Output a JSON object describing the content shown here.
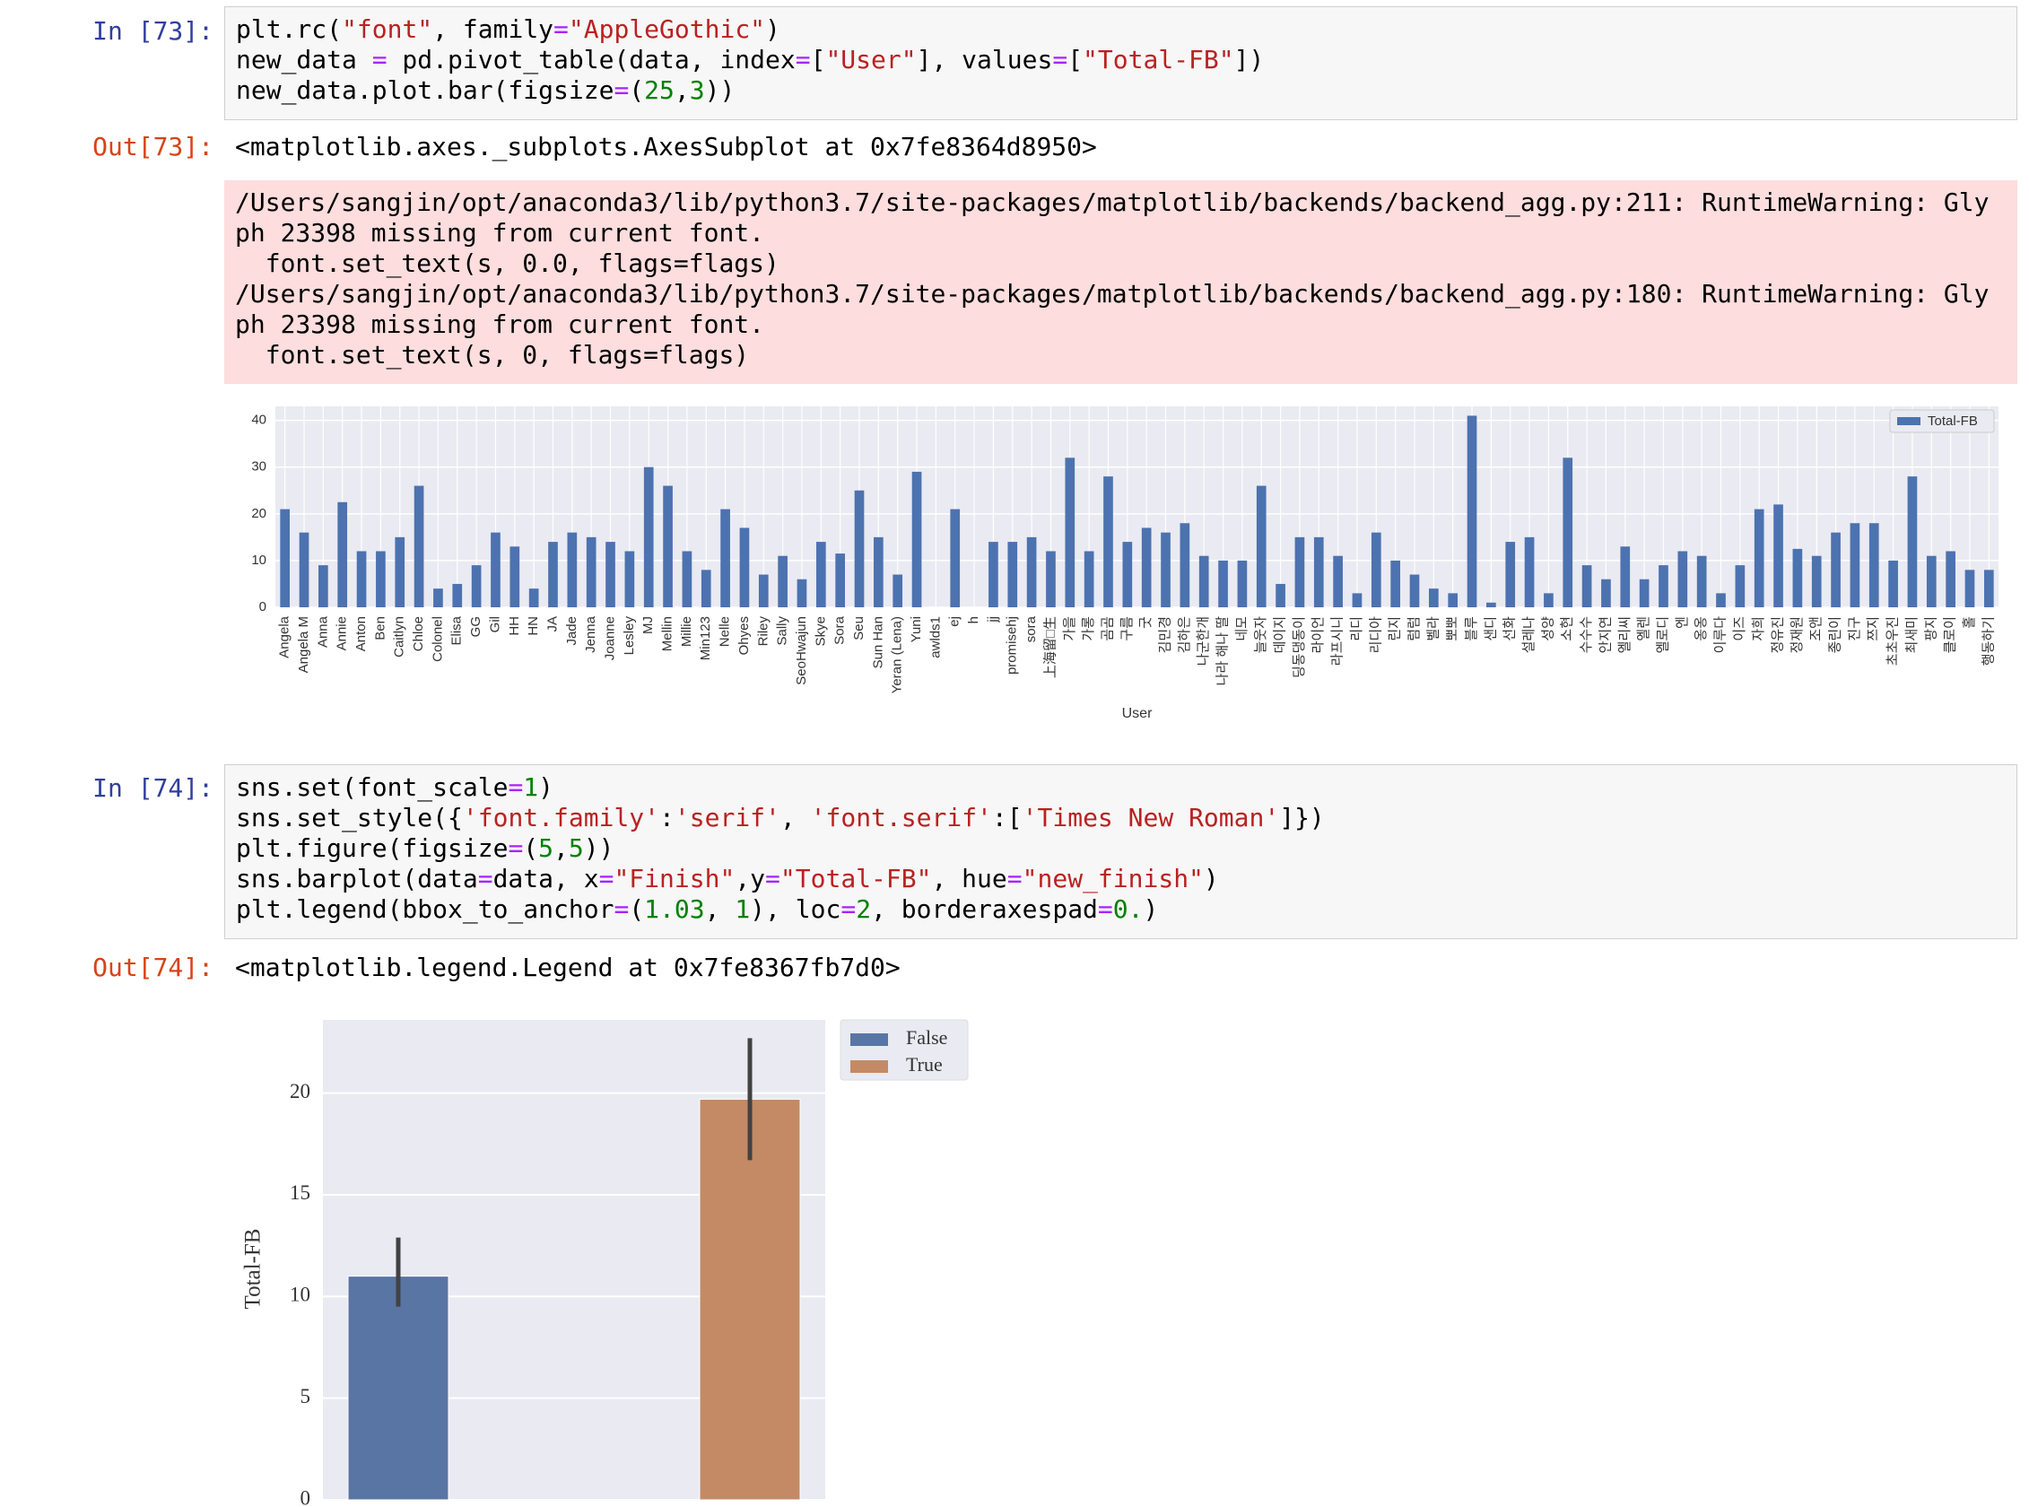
{
  "cells": [
    {
      "prompt": "In [73]:",
      "code": [
        "plt.rc(\"font\", family=\"AppleGothic\")",
        "new_data = pd.pivot_table(data, index=[\"User\"], values=[\"Total-FB\"])",
        "new_data.plot.bar(figsize=(25,3))"
      ],
      "out_prompt": "Out[73]:",
      "output": "<matplotlib.axes._subplots.AxesSubplot at 0x7fe8364d8950>",
      "stderr": [
        "/Users/sangjin/opt/anaconda3/lib/python3.7/site-packages/matplotlib/backends/backend_agg.py:211: RuntimeWarning: Gly",
        "ph 23398 missing from current font.",
        "  font.set_text(s, 0.0, flags=flags)",
        "/Users/sangjin/opt/anaconda3/lib/python3.7/site-packages/matplotlib/backends/backend_agg.py:180: RuntimeWarning: Gly",
        "ph 23398 missing from current font.",
        "  font.set_text(s, 0, flags=flags)"
      ],
      "chart": {
        "type": "bar",
        "xlabel": "User",
        "categories": [
          "Angela",
          "Angela M",
          "Anna",
          "Annie",
          "Anton",
          "Ben",
          "Caitlyn",
          "Chloe",
          "Colonel",
          "Elisa",
          "GG",
          "Gil",
          "HH",
          "HN",
          "JA",
          "Jade",
          "Jenna",
          "Joanne",
          "Lesley",
          "MJ",
          "Mellin",
          "Millie",
          "Min123",
          "Nelle",
          "Ohyes",
          "Riley",
          "Sally",
          "SeoHwajun",
          "Skye",
          "Sora",
          "Seu",
          "Sun Han",
          "Yeran (Lena)",
          "Yuni",
          "awlds1",
          "ej",
          "h",
          "jj",
          "promisehj",
          "sora",
          "上海留□生",
          "가을",
          "가롱",
          "곰곰",
          "구름",
          "굿",
          "김민경",
          "김하은",
          "나군한개",
          "나라 해나 딸",
          "네모",
          "늘웃자",
          "데이지",
          "딩동댕동이",
          "라이언",
          "라프시니",
          "리디",
          "리디아",
          "린지",
          "럼럼",
          "벨라",
          "뽀뽀",
          "블루",
          "샌디",
          "선화",
          "설레나",
          "성양",
          "소현",
          "수수수",
          "안지연",
          "엘리씨",
          "엘렌",
          "엘로디",
          "엔",
          "옹옹",
          "이루다",
          "이즈",
          "자희",
          "정유진",
          "정재원",
          "조앤",
          "종린이",
          "진구",
          "쯔지",
          "초초우진",
          "최새미",
          "팡지",
          "클로이",
          "홀",
          "행동하기"
        ],
        "series": [
          {
            "name": "Total-FB",
            "color": "#4c72b0",
            "values": [
              21,
              16,
              9,
              22.5,
              12,
              12,
              15,
              26,
              4,
              5,
              9,
              16,
              13,
              4,
              14,
              16,
              15,
              14,
              12,
              30,
              26,
              12,
              8,
              21,
              17,
              7,
              11,
              6,
              14,
              11.5,
              25,
              15,
              7,
              29,
              null,
              21,
              null,
              14,
              14,
              15,
              12,
              32,
              12,
              28,
              14,
              17,
              16,
              18,
              11,
              10,
              10,
              26,
              5,
              15,
              15,
              11,
              3,
              16,
              10,
              7,
              4,
              3,
              41,
              1,
              14,
              15,
              3,
              32,
              9,
              6,
              13,
              6,
              9,
              12,
              11,
              3,
              9,
              21,
              22,
              12.5,
              11,
              16,
              18,
              18,
              10,
              28,
              11,
              12,
              8,
              8
            ]
          }
        ],
        "ylim": [
          0,
          43
        ],
        "yticks": [
          0,
          10,
          20,
          30,
          40
        ],
        "grid": true,
        "legend": "upper right"
      }
    },
    {
      "prompt": "In [74]:",
      "code": [
        "sns.set(font_scale=1)",
        "sns.set_style({'font.family':'serif', 'font.serif':['Times New Roman']})",
        "plt.figure(figsize=(5,5))",
        "sns.barplot(data=data, x=\"Finish\",y=\"Total-FB\", hue=\"new_finish\")",
        "plt.legend(bbox_to_anchor=(1.03, 1), loc=2, borderaxespad=0.)"
      ],
      "out_prompt": "Out[74]:",
      "output": "<matplotlib.legend.Legend at 0x7fe8367fb7d0>",
      "chart": {
        "type": "bar",
        "ylabel": "Total-FB",
        "categories": [
          null,
          null
        ],
        "series": [
          {
            "name": "False",
            "color": "#5975a4",
            "values": [
              11,
              null
            ],
            "ci_low": [
              9.5,
              null
            ],
            "ci_high": [
              12.9,
              null
            ]
          },
          {
            "name": "True",
            "color": "#c38a65",
            "values": [
              null,
              19.7
            ],
            "ci_low": [
              null,
              16.7
            ],
            "ci_high": [
              null,
              22.7
            ]
          }
        ],
        "ylim": [
          0,
          23.6
        ],
        "yticks": [
          0,
          5,
          10,
          15,
          20
        ],
        "grid": true,
        "legend": "outside upper right"
      }
    }
  ]
}
